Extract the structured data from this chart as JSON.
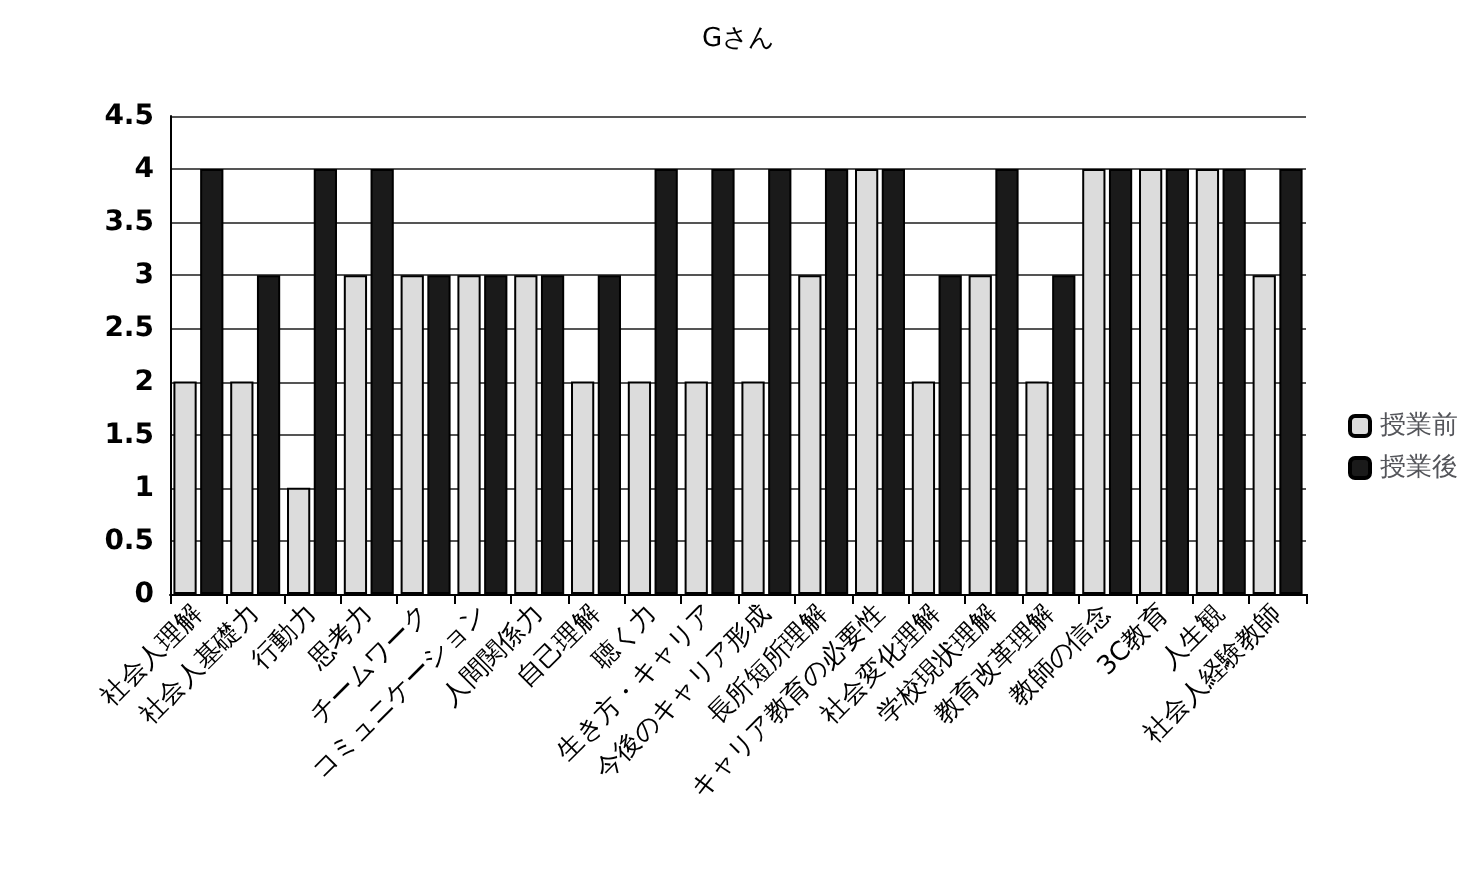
{
  "chart_data": {
    "type": "bar",
    "title": "Gさん",
    "categories": [
      "社会人理解",
      "社会人基礎力",
      "行動力",
      "思考力",
      "チームワーク",
      "コミュニケーション",
      "人間関係力",
      "自己理解",
      "聴く力",
      "生き方・キャリア",
      "今後のキャリア形成",
      "長所短所理解",
      "キャリア教育の必要性",
      "社会変化理解",
      "学校現状理解",
      "教育改革理解",
      "教師の信念",
      "3C教育",
      "人生観",
      "社会人経験教師"
    ],
    "series": [
      {
        "name": "授業前",
        "color": "#dcdcdc",
        "values": [
          2,
          2,
          1,
          3,
          3,
          3,
          3,
          2,
          2,
          2,
          2,
          3,
          4,
          2,
          3,
          2,
          4,
          4,
          4,
          3
        ]
      },
      {
        "name": "授業後",
        "color": "#1a1a1a",
        "values": [
          4,
          3,
          4,
          4,
          3,
          3,
          3,
          3,
          4,
          4,
          4,
          4,
          4,
          3,
          4,
          3,
          4,
          4,
          4,
          4
        ]
      }
    ],
    "ylim": [
      0,
      4.5
    ],
    "yticks": [
      0,
      0.5,
      1,
      1.5,
      2,
      2.5,
      3,
      3.5,
      4,
      4.5
    ],
    "grid": "y",
    "legend": "right"
  }
}
